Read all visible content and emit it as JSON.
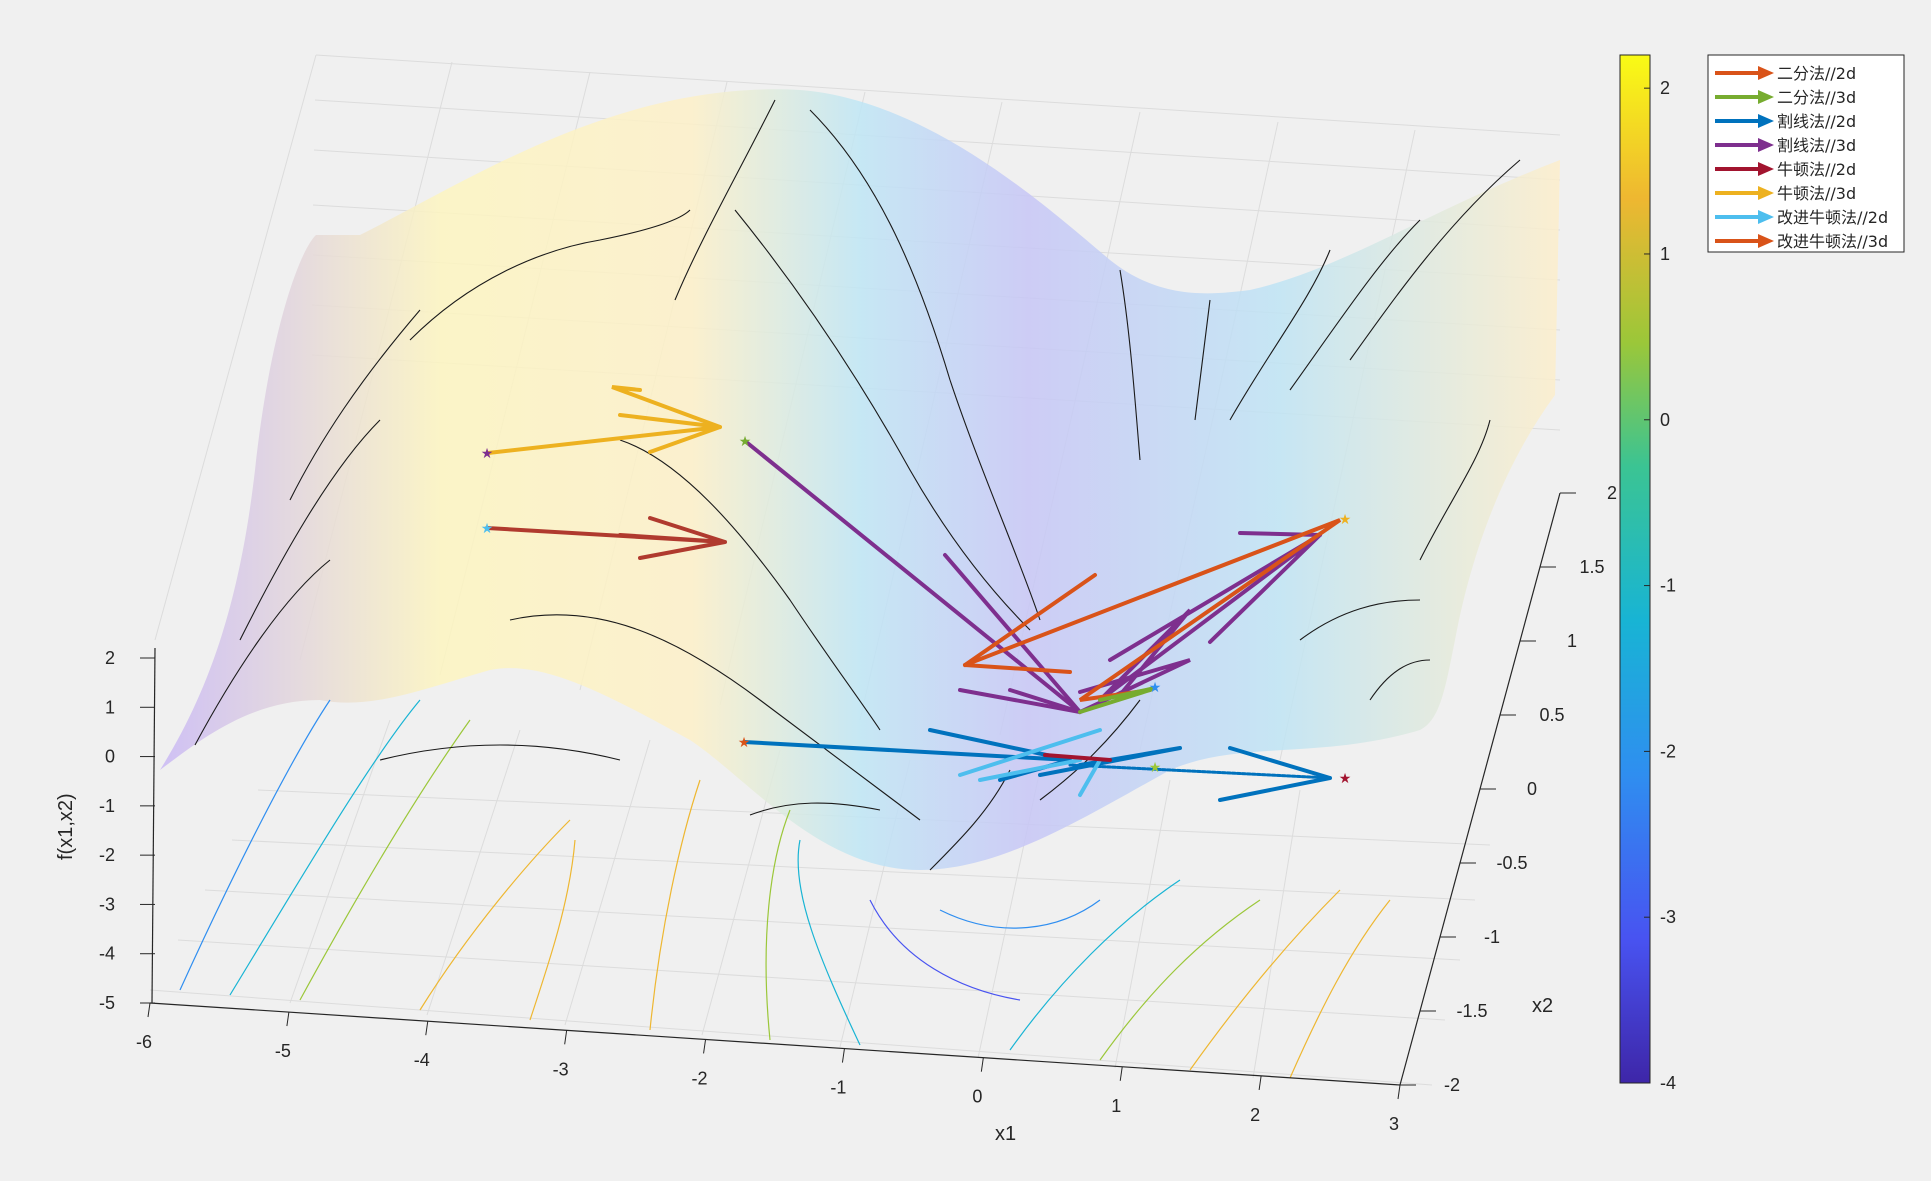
{
  "chart_data": {
    "type": "surface",
    "title": "",
    "xlabel": "x1",
    "ylabel": "x2",
    "zlabel": "f(x1,x2)",
    "xlim": [
      -6,
      3
    ],
    "ylim": [
      -2,
      2
    ],
    "zlim": [
      -5,
      2
    ],
    "x_ticks": [
      "-6",
      "-5",
      "-4",
      "-3",
      "-2",
      "-1",
      "0",
      "1",
      "2",
      "3"
    ],
    "y_ticks": [
      "-2",
      "-1.5",
      "-1",
      "-0.5",
      "0",
      "0.5",
      "1",
      "1.5",
      "2"
    ],
    "z_ticks": [
      "2",
      "1",
      "0",
      "-1",
      "-2",
      "-3",
      "-4",
      "-5"
    ],
    "grid": true,
    "colorbar": {
      "ticks": [
        "2",
        "1",
        "0",
        "-1",
        "-2",
        "-3",
        "-4"
      ],
      "range": [
        -4,
        2.2
      ],
      "colors": [
        "#3e26a8",
        "#4853f1",
        "#2f8ef0",
        "#18b4d4",
        "#3bc493",
        "#9bc739",
        "#eeb731",
        "#f9fb15"
      ]
    },
    "legend_position": "top-right",
    "series": [
      {
        "name": "二分法//2d",
        "color": "#d95319"
      },
      {
        "name": "二分法//3d",
        "color": "#77ac30"
      },
      {
        "name": "割线法//2d",
        "color": "#0072bd"
      },
      {
        "name": "割线法//3d",
        "color": "#7e2f8e"
      },
      {
        "name": "牛顿法//2d",
        "color": "#a2142f"
      },
      {
        "name": "牛顿法//3d",
        "color": "#edb120"
      },
      {
        "name": "改进牛顿法//2d",
        "color": "#4dbeee"
      },
      {
        "name": "改进牛顿法//3d",
        "color": "#d95319"
      }
    ]
  }
}
